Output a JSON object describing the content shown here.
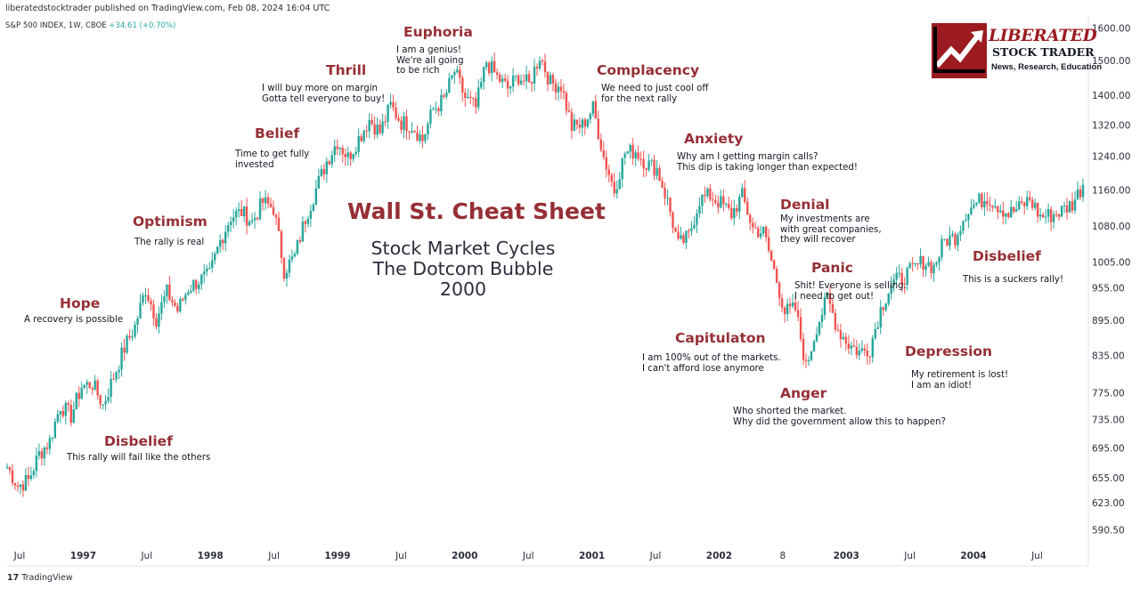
{
  "header": {
    "published_line": "liberatedstocktrader published on TradingView.com, Feb 08, 2024 16:04 UTC",
    "symbol_line": "S&P 500 INDEX, 1W, CBOE",
    "change": "+34.61 (+0.70%)"
  },
  "footer": {
    "brand": "TradingView",
    "brand_icon": "tradingview-logo-icon"
  },
  "logo": {
    "name_line1": "LIBERATED",
    "name_line2": "STOCK TRADER",
    "tagline": "News, Research, Education",
    "icon": "rising-arrow-chart-icon"
  },
  "center": {
    "title": "Wall St. Cheat Sheet",
    "subtitle": [
      "Stock Market Cycles",
      "The Dotcom Bubble",
      "2000"
    ]
  },
  "annotations": [
    {
      "key": "disbelief1",
      "title": "Disbelief",
      "body": "This rally will fail like the others"
    },
    {
      "key": "hope",
      "title": "Hope",
      "body": "A recovery is possible"
    },
    {
      "key": "optimism",
      "title": "Optimism",
      "body": "The rally is real"
    },
    {
      "key": "belief",
      "title": "Belief",
      "body": "Time to get fully\ninvested"
    },
    {
      "key": "thrill",
      "title": "Thrill",
      "body": "I will buy more on margin\nGotta tell everyone to buy!"
    },
    {
      "key": "euphoria",
      "title": "Euphoria",
      "body": "I am a genius!\nWe're all going\nto be rich"
    },
    {
      "key": "complacency",
      "title": "Complacency",
      "body": "We need to just cool off\nfor the next rally"
    },
    {
      "key": "anxiety",
      "title": "Anxiety",
      "body": "Why am I getting margin calls?\nThis dip is taking longer than expected!"
    },
    {
      "key": "denial",
      "title": "Denial",
      "body": "My investments are\nwith great companies,\nthey will recover"
    },
    {
      "key": "panic",
      "title": "Panic",
      "body": "Shit! Everyone is selling.\nI need to get out!"
    },
    {
      "key": "capitulation",
      "title": "Capitulaton",
      "body": "I am 100% out of the markets.\nI can't afford lose anymore"
    },
    {
      "key": "anger",
      "title": "Anger",
      "body": "Who shorted the market.\nWhy did the government allow this to happen?"
    },
    {
      "key": "depression",
      "title": "Depression",
      "body": "My retirement is lost!\nI am an idiot!"
    },
    {
      "key": "disbelief2",
      "title": "Disbelief",
      "body": "This is a suckers rally!"
    }
  ],
  "chart_data": {
    "type": "candlestick",
    "title": "S&P 500 INDEX, 1W, CBOE",
    "x_tick_labels": [
      "Jul",
      "1997",
      "Jul",
      "1998",
      "Jul",
      "1999",
      "Jul",
      "2000",
      "Jul",
      "2001",
      "Jul",
      "2002",
      "8",
      "2003",
      "Jul",
      "2004",
      "Jul"
    ],
    "y_tick_labels": [
      "1600.00",
      "1500.00",
      "1400.00",
      "1320.00",
      "1240.00",
      "1160.00",
      "1080.00",
      "1005.00",
      "955.00",
      "895.00",
      "835.00",
      "775.00",
      "735.00",
      "695.00",
      "655.00",
      "623.00",
      "590.50"
    ],
    "y_scale": "log",
    "y_range": [
      565,
      1640
    ],
    "colors": {
      "up": "#26a69a",
      "down": "#ef5350",
      "accent": "#952f35"
    },
    "series": [
      {
        "name": "S&P 500 INDEX",
        "x": [
          "1996-06",
          "1996-07",
          "1996-08",
          "1996-09",
          "1996-10",
          "1996-11",
          "1996-12",
          "1997-01",
          "1997-02",
          "1997-03",
          "1997-04",
          "1997-05",
          "1997-06",
          "1997-07",
          "1997-08",
          "1997-09",
          "1997-10",
          "1997-11",
          "1997-12",
          "1998-01",
          "1998-02",
          "1998-03",
          "1998-04",
          "1998-05",
          "1998-06",
          "1998-07",
          "1998-08",
          "1998-09",
          "1998-10",
          "1998-11",
          "1998-12",
          "1999-01",
          "1999-02",
          "1999-03",
          "1999-04",
          "1999-05",
          "1999-06",
          "1999-07",
          "1999-08",
          "1999-09",
          "1999-10",
          "1999-11",
          "1999-12",
          "2000-01",
          "2000-02",
          "2000-03",
          "2000-04",
          "2000-05",
          "2000-06",
          "2000-07",
          "2000-08",
          "2000-09",
          "2000-10",
          "2000-11",
          "2000-12",
          "2001-01",
          "2001-02",
          "2001-03",
          "2001-04",
          "2001-05",
          "2001-06",
          "2001-07",
          "2001-08",
          "2001-09",
          "2001-10",
          "2001-11",
          "2001-12",
          "2002-01",
          "2002-02",
          "2002-03",
          "2002-04",
          "2002-05",
          "2002-06",
          "2002-07",
          "2002-08",
          "2002-09",
          "2002-10",
          "2002-11",
          "2002-12",
          "2003-01",
          "2003-02",
          "2003-03",
          "2003-04",
          "2003-05",
          "2003-06",
          "2003-07",
          "2003-08",
          "2003-09",
          "2003-10",
          "2003-11",
          "2003-12",
          "2004-01",
          "2004-02",
          "2004-03",
          "2004-04",
          "2004-05",
          "2004-06",
          "2004-07",
          "2004-08",
          "2004-09",
          "2004-10",
          "2004-11"
        ],
        "close": [
          670,
          645,
          652,
          687,
          705,
          757,
          741,
          786,
          790,
          757,
          801,
          848,
          885,
          954,
          899,
          947,
          914,
          955,
          970,
          980,
          1049,
          1101,
          1111,
          1090,
          1133,
          1120,
          990,
          1017,
          1098,
          1163,
          1229,
          1279,
          1238,
          1286,
          1335,
          1302,
          1372,
          1328,
          1320,
          1282,
          1362,
          1389,
          1469,
          1394,
          1366,
          1498,
          1452,
          1420,
          1455,
          1430,
          1517,
          1436,
          1429,
          1315,
          1320,
          1366,
          1240,
          1160,
          1249,
          1255,
          1224,
          1211,
          1134,
          1040,
          1059,
          1139,
          1148,
          1130,
          1106,
          1147,
          1076,
          1067,
          989,
          911,
          916,
          815,
          885,
          936,
          880,
          855,
          841,
          848,
          916,
          963,
          975,
          990,
          1008,
          996,
          1050,
          1058,
          1111,
          1131,
          1145,
          1126,
          1107,
          1120,
          1140,
          1101,
          1104,
          1114,
          1130,
          1173
        ]
      }
    ]
  }
}
